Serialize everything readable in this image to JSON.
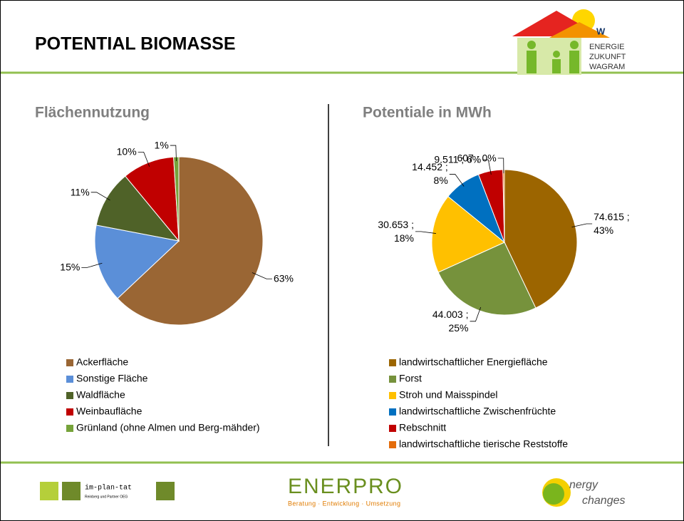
{
  "title": "POTENTIAL BIOMASSE",
  "logos": {
    "header": [
      "ENERGIE",
      "ZUKUNFT",
      "WAGRAM"
    ],
    "implantat": "im-plan-tat",
    "implantat_sub": "Reinberg und Partner OEG",
    "enerpro": "ENERPRO",
    "enerpro_sub": "Beratung · Entwicklung · Umsetzung",
    "energy": "nergy",
    "changes": "changes"
  },
  "chart_data": [
    {
      "type": "pie",
      "title": "Flächennutzung",
      "categories": [
        "Ackerfläche",
        "Sonstige Fläche",
        "Waldfläche",
        "Weinbaufläche",
        "Grünland (ohne Almen und Berg-mähder)"
      ],
      "values": [
        63,
        15,
        11,
        10,
        1
      ],
      "value_labels": [
        "63%",
        "15%",
        "11%",
        "10%",
        "1%"
      ],
      "colors": [
        "#9a6634",
        "#5b8fd8",
        "#4f6228",
        "#c00000",
        "#76a33a"
      ]
    },
    {
      "type": "pie",
      "title": "Potentiale in MWh",
      "categories": [
        "landwirtschaftlicher Energiefläche",
        "Forst",
        "Stroh und Maisspindel",
        "landwirtschaftliche Zwischenfrüchte",
        "Rebschnitt",
        "landwirtschaftliche tierische Reststoffe"
      ],
      "values": [
        74615,
        44003,
        30653,
        14452,
        9511,
        607
      ],
      "value_labels": [
        "74.615 ; 43%",
        "44.003 ; 25%",
        "30.653 ; 18%",
        "14.452 ; 8%",
        "9.511 ; 6%",
        "607 ; 0%"
      ],
      "colors": [
        "#9c6500",
        "#76923c",
        "#ffc000",
        "#0070c0",
        "#c00000",
        "#e46c0a"
      ]
    }
  ]
}
